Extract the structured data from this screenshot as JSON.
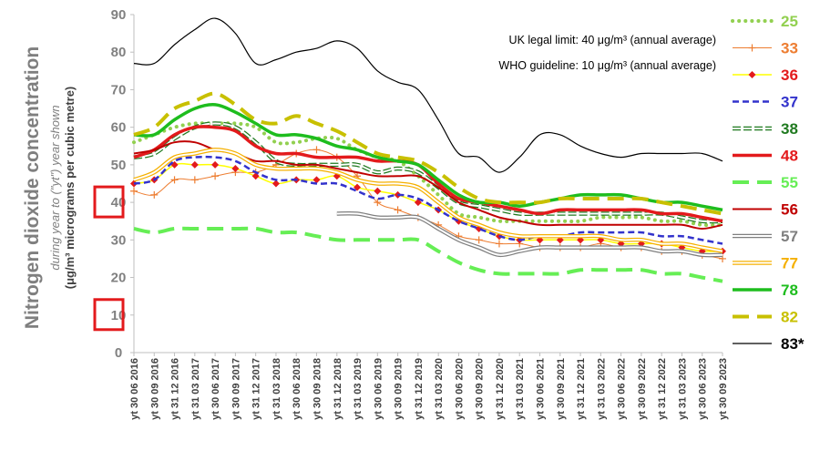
{
  "chart_data": {
    "type": "line",
    "ylabel_main": "Nitrogen dioxide concentration",
    "ylabel_sub": "during year to (\"yt\") year shown",
    "ylabel_unit": "(μg/m³ micrograms per cubic metre)",
    "ylim": [
      0,
      90
    ],
    "yticks": [
      0,
      10,
      20,
      30,
      40,
      50,
      60,
      70,
      80,
      90
    ],
    "highlighted_ticks": [
      10,
      40
    ],
    "x_ticks": [
      "yt 30 06 2016",
      "yt 30 09 2016",
      "yt 31 12 2016",
      "yt 31 03 2017",
      "yt 30 06 2017",
      "yt 30 09 2017",
      "yt 31 12 2017",
      "yt 31 03 2018",
      "yt 30 06 2018",
      "yt 30 09 2018",
      "yt 31 12 2018",
      "yt 31 03 2019",
      "yt 30 06 2019",
      "yt 30 09 2019",
      "yt 31 12 2019",
      "yt 31 03 2020",
      "yt 30 06 2020",
      "yt 30 09 2020",
      "yt 31 12 2020",
      "yt 31 03 2021",
      "yt 30 06 2021",
      "yt 30 09 2021",
      "yt 31 12 2021",
      "yt 31 03 2022",
      "yt 30 06 2022",
      "yt 30 09 2022",
      "yt 31 12 2022",
      "yt 31 03 2023",
      "yt 30 06 2023",
      "yt 30 09 2023"
    ],
    "annotations": [
      "UK legal limit:  40 μg/m³ (annual average)",
      "WHO guideline:  10 μg/m³ (annual average)"
    ],
    "grid": false,
    "legend_position": "right",
    "series": [
      {
        "name": "25",
        "color": "#92d050",
        "style": "dots",
        "start": 0,
        "values": [
          56,
          58,
          60,
          61,
          61,
          61,
          60,
          56,
          56,
          57,
          57,
          54,
          52,
          51,
          47,
          42,
          37,
          36,
          35,
          35,
          35,
          35,
          35,
          36,
          36,
          36,
          35,
          35,
          34,
          34
        ]
      },
      {
        "name": "33",
        "color": "#ed7d31",
        "style": "plus",
        "start": 0,
        "values": [
          43,
          42,
          46,
          46,
          47,
          48,
          48,
          50,
          53,
          54,
          52,
          47,
          40,
          38,
          36,
          34,
          31,
          30,
          29,
          29,
          28,
          28,
          28,
          29,
          28,
          28,
          27,
          27,
          26,
          25
        ]
      },
      {
        "name": "36",
        "color": "#e31a1c",
        "style": "diamond-yellow",
        "start": 0,
        "values": [
          45,
          46,
          50,
          50,
          50,
          49,
          47,
          45,
          46,
          46,
          47,
          44,
          43,
          42,
          40,
          38,
          35,
          33,
          31,
          30,
          30,
          30,
          30,
          30,
          29,
          29,
          29,
          28,
          27,
          27
        ]
      },
      {
        "name": "37",
        "color": "#3333cc",
        "style": "dash",
        "start": 0,
        "values": [
          45,
          46,
          51,
          52,
          52,
          51,
          48,
          46,
          46,
          45,
          45,
          43,
          41,
          42,
          41,
          38,
          35,
          33,
          31,
          30,
          31,
          31,
          32,
          32,
          32,
          32,
          31,
          31,
          30,
          29
        ]
      },
      {
        "name": "38",
        "color": "#207a20",
        "style": "hollow-dash",
        "start": 0,
        "values": [
          52,
          53,
          57,
          60,
          61,
          60,
          56,
          51,
          50,
          50,
          50,
          50,
          48,
          49,
          48,
          44,
          40,
          39,
          38,
          37,
          37,
          37,
          37,
          37,
          37,
          37,
          37,
          36,
          35,
          35
        ]
      },
      {
        "name": "48",
        "color": "#e31a1c",
        "style": "thick",
        "start": 0,
        "values": [
          52,
          54,
          58,
          60,
          60,
          59,
          55,
          53,
          53,
          52,
          52,
          52,
          51,
          51,
          50,
          45,
          41,
          40,
          39,
          38,
          37,
          38,
          38,
          38,
          38,
          38,
          37,
          37,
          36,
          35
        ]
      },
      {
        "name": "55",
        "color": "#66ee55",
        "style": "thick-dash",
        "start": 0,
        "values": [
          33,
          32,
          33,
          33,
          33,
          33,
          33,
          32,
          32,
          31,
          30,
          30,
          30,
          30,
          30,
          27,
          24,
          22,
          21,
          21,
          21,
          21,
          22,
          22,
          22,
          22,
          21,
          21,
          20,
          19
        ]
      },
      {
        "name": "56",
        "color": "#c00000",
        "style": "solid",
        "start": 0,
        "values": [
          53,
          54,
          56,
          56,
          54,
          53,
          51,
          51,
          50,
          50,
          49,
          48,
          47,
          47,
          47,
          44,
          40,
          38,
          36,
          35,
          34,
          34,
          34,
          34,
          34,
          34,
          34,
          34,
          33,
          34
        ]
      },
      {
        "name": "57",
        "color": "#7f7f7f",
        "style": "double",
        "start": 10,
        "values": [
          37,
          37,
          36,
          36,
          36,
          33,
          30,
          28,
          26,
          27,
          28,
          28,
          28,
          28,
          28,
          28,
          27,
          27,
          26,
          26
        ]
      },
      {
        "name": "77",
        "color": "#f5b000",
        "style": "double",
        "start": 0,
        "values": [
          46,
          48,
          52,
          53,
          54,
          53,
          50,
          49,
          49,
          49,
          48,
          46,
          45,
          45,
          44,
          40,
          36,
          34,
          32,
          31,
          31,
          31,
          31,
          31,
          30,
          30,
          29,
          29,
          28,
          27
        ]
      },
      {
        "name": "78",
        "color": "#1ebd1e",
        "style": "thick",
        "start": 0,
        "values": [
          58,
          58,
          62,
          65,
          66,
          64,
          61,
          58,
          58,
          57,
          55,
          54,
          52,
          51,
          50,
          46,
          42,
          40,
          40,
          39,
          40,
          41,
          42,
          42,
          42,
          41,
          40,
          40,
          39,
          38
        ]
      },
      {
        "name": "82",
        "color": "#c8c000",
        "style": "thick-dash",
        "start": 0,
        "values": [
          58,
          60,
          65,
          67,
          69,
          66,
          62,
          61,
          63,
          61,
          59,
          56,
          53,
          52,
          51,
          48,
          44,
          41,
          40,
          40,
          40,
          41,
          41,
          41,
          41,
          41,
          40,
          39,
          38,
          37
        ]
      },
      {
        "name": "83*",
        "color": "#000000",
        "style": "thin",
        "start": 0,
        "values": [
          77,
          77,
          82,
          86,
          89,
          85,
          77,
          78,
          80,
          81,
          83,
          81,
          75,
          72,
          70,
          62,
          53,
          52,
          48,
          52,
          58,
          58,
          55,
          53,
          52,
          53,
          53,
          53,
          53,
          51
        ]
      }
    ]
  }
}
